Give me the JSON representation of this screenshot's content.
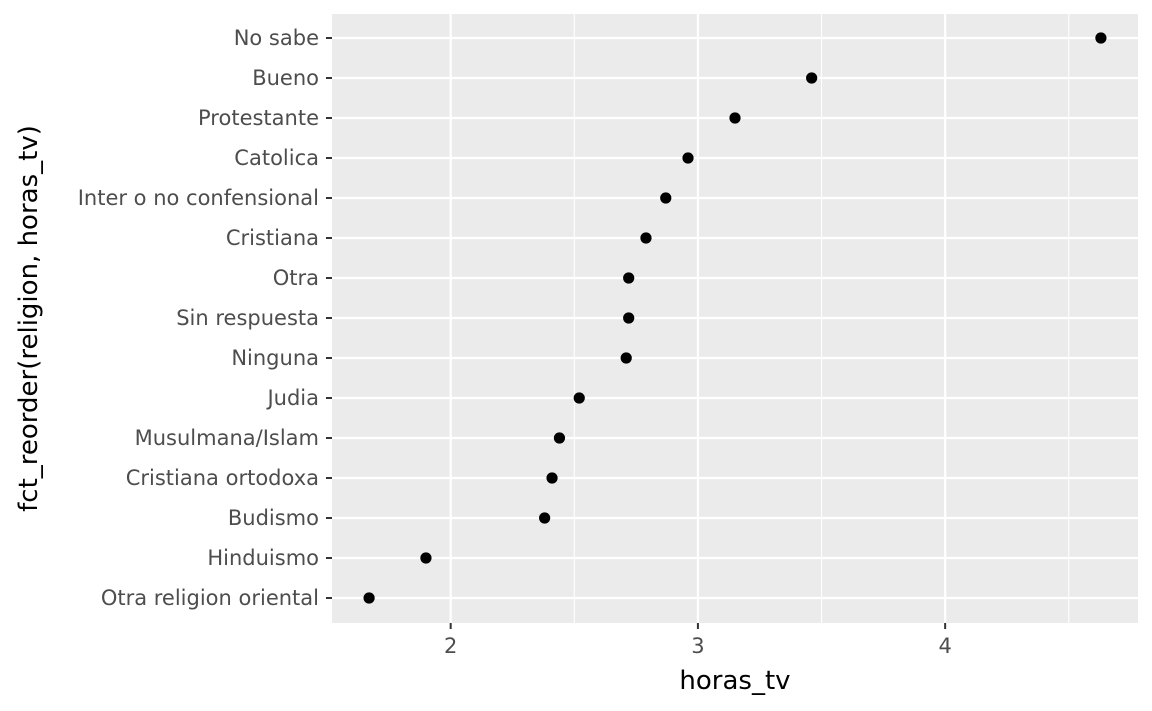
{
  "chart_data": {
    "type": "scatter",
    "title": "",
    "xlabel": "horas_tv",
    "ylabel": "fct_reorder(religion, horas_tv)",
    "xlim": [
      1.52,
      4.78
    ],
    "x_ticks": [
      2,
      3,
      4
    ],
    "x_tick_labels": [
      "2",
      "3",
      "4"
    ],
    "grid": true,
    "legend": "none",
    "colors": {
      "panel": "#ebebeb",
      "grid": "#ffffff",
      "point": "#000000",
      "tick_text": "#4d4d4d"
    },
    "categories": [
      "Otra religion oriental",
      "Hinduismo",
      "Budismo",
      "Cristiana ortodoxa",
      "Musulmana/Islam",
      "Judia",
      "Ninguna",
      "Sin respuesta",
      "Otra",
      "Cristiana",
      "Inter o no confensional",
      "Catolica",
      "Protestante",
      "Bueno",
      "No sabe"
    ],
    "values": [
      1.67,
      1.9,
      2.38,
      2.41,
      2.44,
      2.52,
      2.71,
      2.72,
      2.72,
      2.79,
      2.87,
      2.96,
      3.15,
      3.46,
      4.63
    ]
  }
}
